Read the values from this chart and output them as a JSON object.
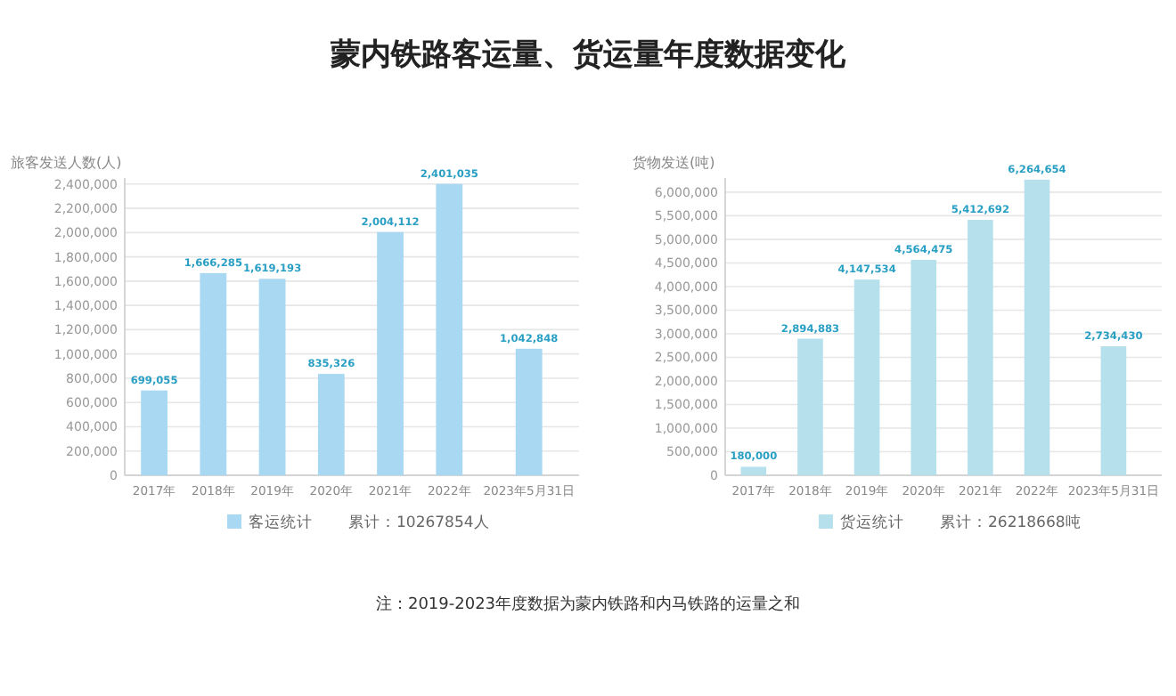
{
  "chart_data": [
    {
      "type": "bar",
      "title": "蒙内铁路客运量、货运量年度数据变化",
      "ylabel": "旅客发送人数(人)",
      "categories": [
        "2017年",
        "2018年",
        "2019年",
        "2020年",
        "2021年",
        "2022年",
        "2023年5月31日"
      ],
      "series": [
        {
          "name": "客运统计",
          "color": "#a8d8f2",
          "values": [
            699055,
            1666285,
            1619193,
            835326,
            2004112,
            2401035,
            1042848
          ],
          "value_labels": [
            "699,055",
            "1,666,285",
            "1,619,193",
            "835,326",
            "2,004,112",
            "2,401,035",
            "1,042,848"
          ]
        }
      ],
      "ylim": [
        0,
        2450000
      ],
      "yticks": [
        {
          "value": 0,
          "label": "0"
        },
        {
          "value": 200000,
          "label": "200,000"
        },
        {
          "value": 400000,
          "label": "400,000"
        },
        {
          "value": 600000,
          "label": "600,000"
        },
        {
          "value": 800000,
          "label": "800,000"
        },
        {
          "value": 1000000,
          "label": "1,000,000"
        },
        {
          "value": 1200000,
          "label": "1,200,000"
        },
        {
          "value": 1400000,
          "label": "1,400,000"
        },
        {
          "value": 1600000,
          "label": "1,600,000"
        },
        {
          "value": 1800000,
          "label": "1,800,000"
        },
        {
          "value": 2000000,
          "label": "2,000,000"
        },
        {
          "value": 2200000,
          "label": "2,200,000"
        },
        {
          "value": 2400000,
          "label": "2,400,000"
        }
      ],
      "grid": "y",
      "legend": "bottom",
      "annotations": [
        "累计：10267854人",
        "注：2019-2023年度数据为蒙内铁路和内马铁路的运量之和"
      ]
    },
    {
      "type": "bar",
      "ylabel": "货物发送(吨)",
      "categories": [
        "2017年",
        "2018年",
        "2019年",
        "2020年",
        "2021年",
        "2022年",
        "2023年5月31日"
      ],
      "series": [
        {
          "name": "货运统计",
          "color": "#b5e0ec",
          "values": [
            180000,
            2894883,
            4147534,
            4564475,
            5412692,
            6264654,
            2734430
          ],
          "value_labels": [
            "180,000",
            "2,894,883",
            "4,147,534",
            "4,564,475",
            "5,412,692",
            "6,264,654",
            "2,734,430"
          ]
        }
      ],
      "ylim": [
        0,
        6300000
      ],
      "yticks": [
        {
          "value": 0,
          "label": "0"
        },
        {
          "value": 500000,
          "label": "500,000"
        },
        {
          "value": 1000000,
          "label": "1,000,000"
        },
        {
          "value": 1500000,
          "label": "1,500,000"
        },
        {
          "value": 2000000,
          "label": "2,000,000"
        },
        {
          "value": 2500000,
          "label": "2,500,000"
        },
        {
          "value": 3000000,
          "label": "3,000,000"
        },
        {
          "value": 3500000,
          "label": "3,500,000"
        },
        {
          "value": 4000000,
          "label": "4,000,000"
        },
        {
          "value": 4500000,
          "label": "4,500,000"
        },
        {
          "value": 5000000,
          "label": "5,000,000"
        },
        {
          "value": 5500000,
          "label": "5,500,000"
        },
        {
          "value": 6000000,
          "label": "6,000,000"
        }
      ],
      "grid": "y",
      "legend": "bottom",
      "annotations": [
        "累计：26218668吨"
      ]
    }
  ]
}
